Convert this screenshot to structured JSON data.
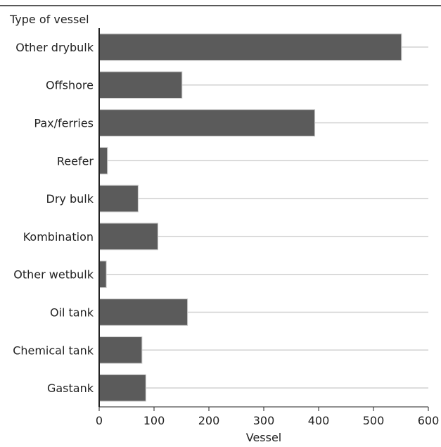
{
  "chart_data": {
    "type": "bar",
    "orientation": "horizontal",
    "ylabel": "Type of vessel",
    "xlabel": "Vessel",
    "categories": [
      "Other drybulk",
      "Offshore",
      "Pax/ferries",
      "Reefer",
      "Dry bulk",
      "Kombination",
      "Other wetbulk",
      "Oil tank",
      "Chemical tank",
      "Gastank"
    ],
    "values": [
      551,
      151,
      393,
      15,
      71,
      107,
      13,
      161,
      78,
      85
    ],
    "xlim": [
      0,
      600
    ],
    "xticks": [
      "0",
      "100",
      "200",
      "300",
      "400",
      "500",
      "600"
    ],
    "grid": "horizontal-per-category",
    "legend": "none",
    "colors": {
      "bar_fill": "#5b5b5b",
      "bar_edge": "#c8c8c8",
      "gridline": "#cfcfcf",
      "axis": "#222222",
      "top_rule": "#222222"
    }
  }
}
